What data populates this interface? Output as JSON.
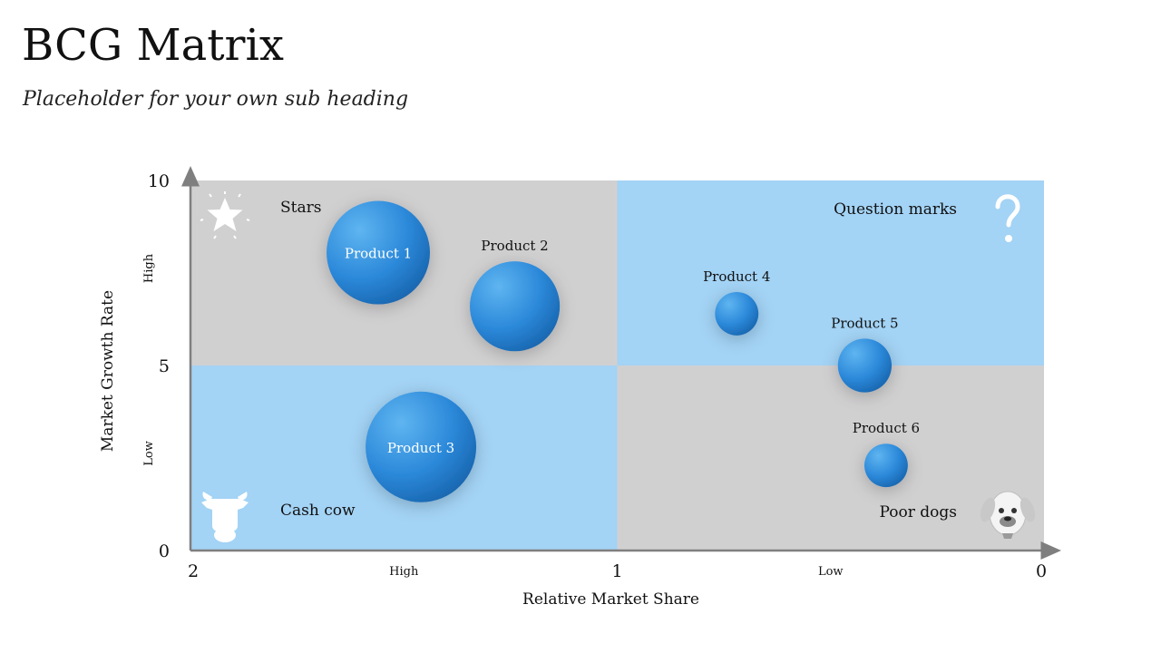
{
  "slide": {
    "title": "BCG Matrix",
    "subtitle": "Placeholder for your own sub heading"
  },
  "colors": {
    "quadrant_grey": "#D1D0D1",
    "quadrant_blue": "#A3D3F5",
    "bubble_light": "#5FB5F0",
    "bubble_dark": "#1560A8",
    "axis": "#7F7F7F",
    "icon_white": "#FFFFFF"
  },
  "chart_data": {
    "type": "scatter",
    "title": "",
    "xlabel": "Relative Market Share",
    "ylabel": "Market Growth Rate",
    "xlim": [
      2,
      0
    ],
    "ylim": [
      0,
      10
    ],
    "x_ticks": [
      "2",
      "1",
      "0"
    ],
    "y_ticks": [
      "10",
      "5",
      "0"
    ],
    "x_tick_values": [
      2,
      1,
      0
    ],
    "y_tick_values": [
      10,
      5,
      0
    ],
    "x_category_labels": [
      {
        "label": "High",
        "x": 1.5
      },
      {
        "label": "Low",
        "x": 0.5
      }
    ],
    "y_category_labels": [
      {
        "label": "High",
        "y": 7.5
      },
      {
        "label": "Low",
        "y": 2.5
      }
    ],
    "quadrants": [
      {
        "name": "Stars",
        "x_range": [
          2,
          1
        ],
        "y_range": [
          5,
          10
        ],
        "color": "#D1D0D1",
        "icon": "star-icon",
        "corner": "top-left"
      },
      {
        "name": "Question marks",
        "x_range": [
          1,
          0
        ],
        "y_range": [
          5,
          10
        ],
        "color": "#A3D3F5",
        "icon": "question-mark-icon",
        "corner": "top-right"
      },
      {
        "name": "Cash cow",
        "x_range": [
          2,
          1
        ],
        "y_range": [
          0,
          5
        ],
        "color": "#A3D3F5",
        "icon": "cow-icon",
        "corner": "bottom-left"
      },
      {
        "name": "Poor dogs",
        "x_range": [
          1,
          0
        ],
        "y_range": [
          0,
          5
        ],
        "color": "#D1D0D1",
        "icon": "dog-icon",
        "corner": "bottom-right"
      }
    ],
    "series": [
      {
        "name": "Product 1",
        "x": 1.56,
        "y": 8.05,
        "size": 1.0,
        "label_position": "inside"
      },
      {
        "name": "Product 2",
        "x": 1.24,
        "y": 6.6,
        "size": 0.87,
        "label_position": "above"
      },
      {
        "name": "Product 3",
        "x": 1.46,
        "y": 2.8,
        "size": 1.07,
        "label_position": "inside"
      },
      {
        "name": "Product 4",
        "x": 0.72,
        "y": 6.4,
        "size": 0.42,
        "label_position": "above"
      },
      {
        "name": "Product 5",
        "x": 0.42,
        "y": 5.0,
        "size": 0.52,
        "label_position": "above"
      },
      {
        "name": "Product 6",
        "x": 0.37,
        "y": 2.3,
        "size": 0.42,
        "label_position": "above"
      }
    ]
  }
}
